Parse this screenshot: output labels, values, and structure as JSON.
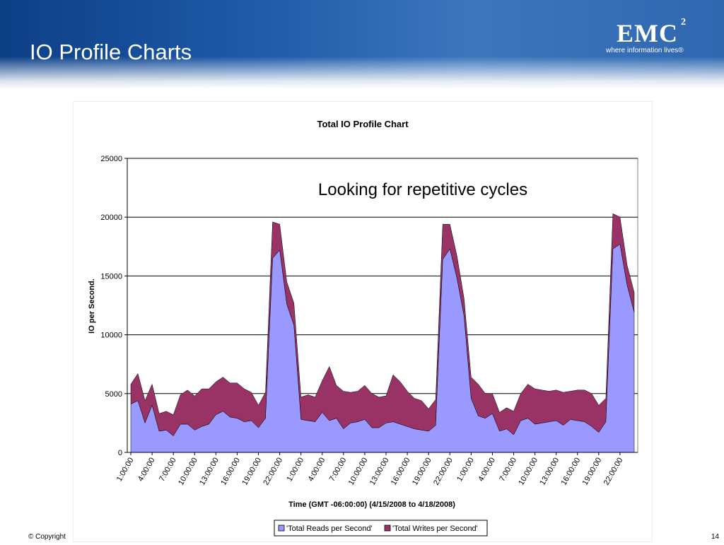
{
  "slide": {
    "title": "IO Profile Charts",
    "logo_brand": "EMC",
    "logo_superscript": "2",
    "logo_tagline": "where information lives®",
    "footer_copyright": "© Copyright",
    "page_number": "14"
  },
  "colors": {
    "banner": "#1f5aa8",
    "reads_fill": "#9999ff",
    "writes_fill": "#993366",
    "gridline": "#000000"
  },
  "chart_data": {
    "type": "area",
    "stacked": true,
    "title": "Total IO Profile Chart",
    "annotation": "Looking for repetitive cycles",
    "xlabel": "Time (GMT -06:00:00) (4/15/2008 to 4/18/2008)",
    "ylabel": "IO per Second.",
    "ylim": [
      0,
      25000
    ],
    "yticks": [
      0,
      5000,
      10000,
      15000,
      20000,
      25000
    ],
    "x_tick_labels": [
      "1:00:00",
      "4:00:00",
      "7:00:00",
      "10:00:00",
      "13:00:00",
      "16:00:00",
      "19:00:00",
      "22:00:00",
      "1:00:00",
      "4:00:00",
      "7:00:00",
      "10:00:00",
      "13:00:00",
      "16:00:00",
      "19:00:00",
      "22:00:00",
      "1:00:00",
      "4:00:00",
      "7:00:00",
      "10:00:00",
      "13:00:00",
      "16:00:00",
      "19:00:00",
      "22:00:00"
    ],
    "grid": true,
    "legend_position": "bottom",
    "series": [
      {
        "name": "'Total Reads per Second'",
        "color": "#9999ff",
        "values": [
          4100,
          4400,
          2500,
          4000,
          1800,
          1900,
          1400,
          2400,
          2400,
          1900,
          2200,
          2400,
          3200,
          3500,
          3000,
          2900,
          2600,
          2700,
          2100,
          2900,
          16500,
          17200,
          12600,
          10800,
          2800,
          2700,
          2600,
          3400,
          2700,
          2900,
          2000,
          2500,
          2600,
          2800,
          2100,
          2100,
          2500,
          2600,
          2400,
          2200,
          2000,
          1900,
          1800,
          2300,
          16400,
          17300,
          14800,
          11600,
          4600,
          3100,
          2900,
          3300,
          1800,
          2000,
          1500,
          2700,
          2900,
          2400,
          2500,
          2600,
          2700,
          2300,
          2800,
          2700,
          2600,
          2200,
          1700,
          2600,
          17300,
          17700,
          14200,
          11900
        ]
      },
      {
        "name": "'Total Writes per Second'",
        "color": "#993366",
        "values": [
          1700,
          2300,
          1900,
          1800,
          1500,
          1600,
          1800,
          2500,
          2900,
          2900,
          3200,
          3000,
          2800,
          2900,
          2900,
          3000,
          2800,
          2400,
          1900,
          2200,
          3100,
          2200,
          1900,
          1900,
          1900,
          2200,
          2100,
          2700,
          4600,
          2800,
          3200,
          2600,
          2600,
          2900,
          2900,
          2600,
          2300,
          4000,
          3600,
          3000,
          2600,
          2500,
          1900,
          2200,
          3000,
          2100,
          1900,
          1500,
          1800,
          2700,
          2100,
          1700,
          1600,
          1800,
          2000,
          2300,
          2900,
          3000,
          2800,
          2600,
          2600,
          2800,
          2400,
          2600,
          2700,
          2800,
          2300,
          2000,
          3000,
          2300,
          1700,
          1700
        ]
      }
    ]
  }
}
